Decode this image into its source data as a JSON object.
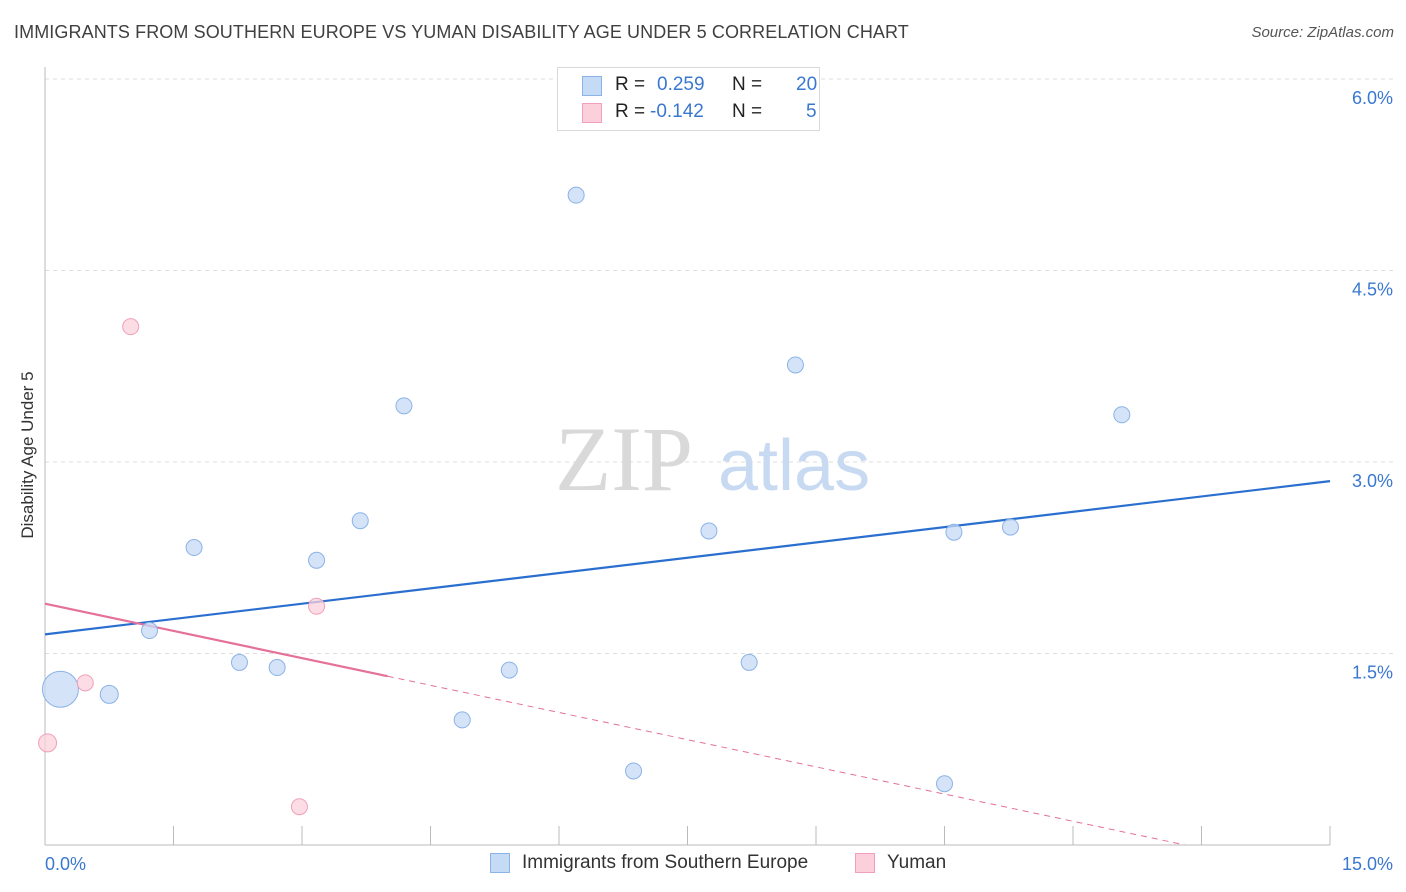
{
  "title": "IMMIGRANTS FROM SOUTHERN EUROPE VS YUMAN DISABILITY AGE UNDER 5 CORRELATION CHART",
  "source": "Source: ZipAtlas.com",
  "legend": {
    "row1": {
      "r_label": "R =",
      "r_value": "0.259",
      "n_label": "N =",
      "n_value": "20"
    },
    "row2": {
      "r_label": "R =",
      "r_value": "-0.142",
      "n_label": "N =",
      "n_value": "5"
    }
  },
  "bottom_legend": {
    "series1": "Immigrants from Southern Europe",
    "series2": "Yuman"
  },
  "colors": {
    "blue_fill": "#c5daf5",
    "blue_stroke": "#8bb3e6",
    "blue_line": "#2a6fcf",
    "pink_fill": "#fbd0dc",
    "pink_stroke": "#f0a0b8",
    "pink_line": "#e5709a",
    "tick_text": "#3a78d0"
  },
  "chart_data": {
    "type": "scatter",
    "title": "IMMIGRANTS FROM SOUTHERN EUROPE VS YUMAN DISABILITY AGE UNDER 5 CORRELATION CHART",
    "xlabel": "",
    "ylabel": "Disability Age Under 5",
    "xlim": [
      0,
      15
    ],
    "ylim": [
      0,
      6.2
    ],
    "x_ticks": [
      0,
      15
    ],
    "x_tick_labels": [
      "0.0%",
      "15.0%"
    ],
    "y_ticks": [
      1.5,
      3.0,
      4.5,
      6.0
    ],
    "y_tick_labels": [
      "1.5%",
      "3.0%",
      "4.5%",
      "6.0%"
    ],
    "watermark": {
      "a": "ZIP",
      "b": "atlas"
    },
    "series": [
      {
        "name": "Immigrants from Southern Europe",
        "color": "#c5daf5",
        "points": [
          {
            "x": 0.18,
            "y": 1.22,
            "size": 18
          },
          {
            "x": 0.75,
            "y": 1.18,
            "size": 9
          },
          {
            "x": 1.22,
            "y": 1.68,
            "size": 8
          },
          {
            "x": 1.74,
            "y": 2.33,
            "size": 8
          },
          {
            "x": 2.27,
            "y": 1.43,
            "size": 8
          },
          {
            "x": 2.71,
            "y": 1.39,
            "size": 8
          },
          {
            "x": 3.17,
            "y": 2.23,
            "size": 8
          },
          {
            "x": 3.68,
            "y": 2.54,
            "size": 8
          },
          {
            "x": 4.19,
            "y": 3.44,
            "size": 8
          },
          {
            "x": 4.87,
            "y": 0.98,
            "size": 8
          },
          {
            "x": 5.42,
            "y": 1.37,
            "size": 8
          },
          {
            "x": 6.2,
            "y": 5.09,
            "size": 8
          },
          {
            "x": 6.87,
            "y": 0.58,
            "size": 8
          },
          {
            "x": 7.75,
            "y": 2.46,
            "size": 8
          },
          {
            "x": 8.22,
            "y": 1.43,
            "size": 8
          },
          {
            "x": 8.76,
            "y": 3.76,
            "size": 8
          },
          {
            "x": 10.5,
            "y": 0.48,
            "size": 8
          },
          {
            "x": 10.61,
            "y": 2.45,
            "size": 8
          },
          {
            "x": 11.27,
            "y": 2.49,
            "size": 8
          },
          {
            "x": 12.57,
            "y": 3.37,
            "size": 8
          }
        ],
        "trend": {
          "x": [
            0,
            15
          ],
          "y": [
            1.65,
            2.85
          ]
        }
      },
      {
        "name": "Yuman",
        "color": "#fbd0dc",
        "points": [
          {
            "x": 0.03,
            "y": 0.8,
            "size": 9
          },
          {
            "x": 0.47,
            "y": 1.27,
            "size": 8
          },
          {
            "x": 1.0,
            "y": 4.06,
            "size": 8
          },
          {
            "x": 2.97,
            "y": 0.3,
            "size": 8
          },
          {
            "x": 3.17,
            "y": 1.87,
            "size": 8
          }
        ],
        "trend": {
          "x_solid": [
            0,
            4.0
          ],
          "x_dashed": [
            4.0,
            13.3
          ],
          "y_at_x0": 1.89,
          "slope": -0.142
        }
      }
    ]
  }
}
